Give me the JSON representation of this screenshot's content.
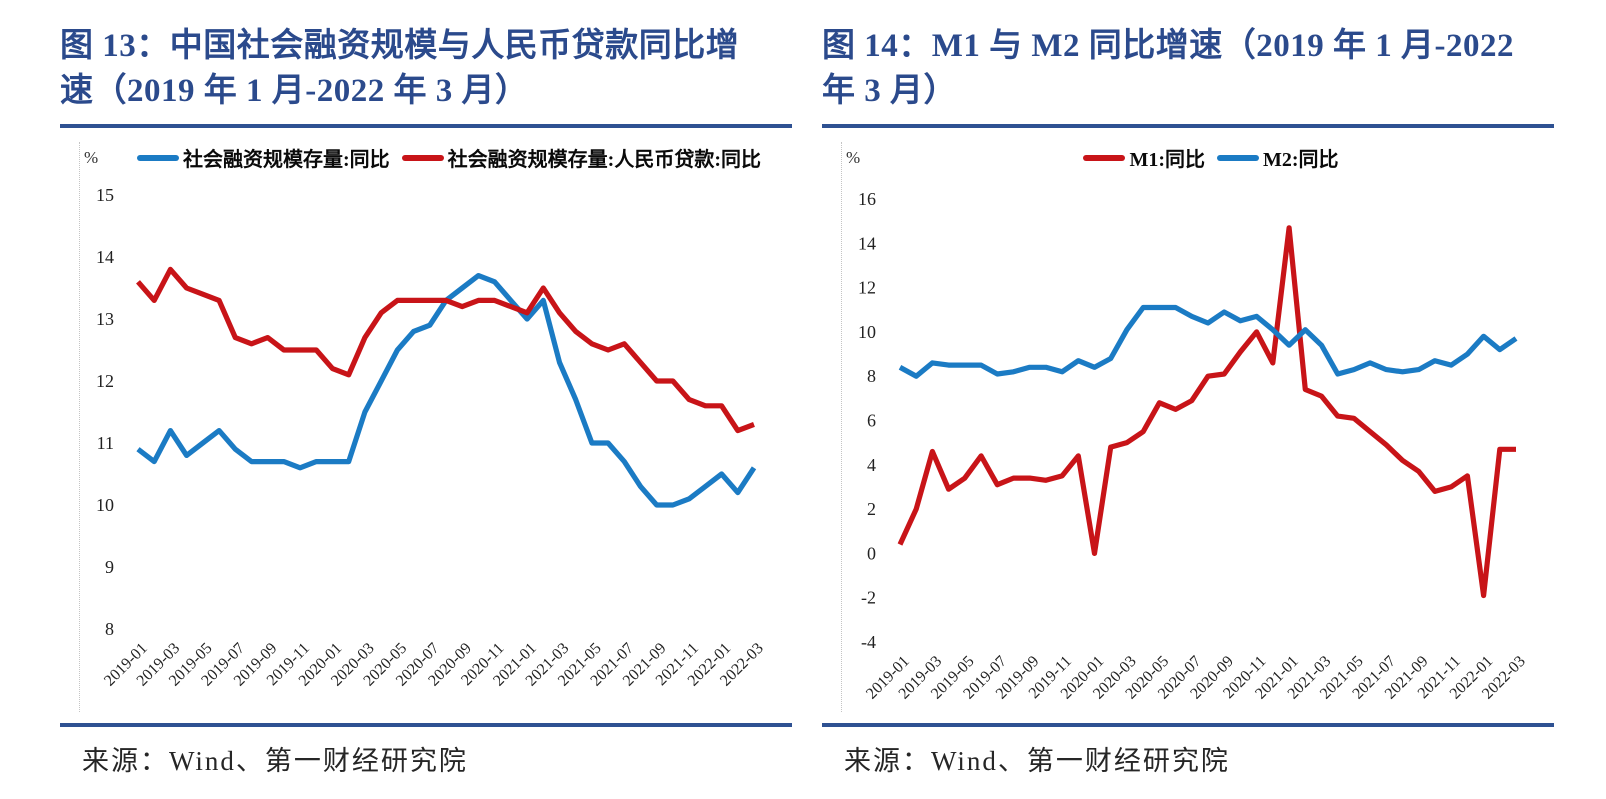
{
  "panels": [
    {
      "figure_label": "图 13",
      "title": "图 13：中国社会融资规模与人民币贷款同比增速（2019 年 1 月-2022 年 3 月）",
      "unit_label": "%",
      "source": "来源：Wind、第一财经研究院"
    },
    {
      "figure_label": "图 14",
      "title": "图 14：M1 与 M2 同比增速（2019 年 1 月-2022 年 3 月）",
      "unit_label": "%",
      "source": "来源：Wind、第一财经研究院"
    }
  ],
  "colors": {
    "title_text": "#2B4A8C",
    "navy_rule": "#2E5192",
    "line_blue": "#1B7BC4",
    "line_red": "#C81418"
  },
  "chart_data": [
    {
      "type": "line",
      "title": "中国社会融资规模与人民币贷款同比增速",
      "ylabel": "%",
      "ylim": [
        8,
        15
      ],
      "yticks": [
        15,
        14,
        13,
        12,
        11,
        10,
        9,
        8
      ],
      "grid": false,
      "legend_position": "top",
      "xtick_step": 2,
      "x": [
        "2019-01",
        "2019-02",
        "2019-03",
        "2019-04",
        "2019-05",
        "2019-06",
        "2019-07",
        "2019-08",
        "2019-09",
        "2019-10",
        "2019-11",
        "2019-12",
        "2020-01",
        "2020-02",
        "2020-03",
        "2020-04",
        "2020-05",
        "2020-06",
        "2020-07",
        "2020-08",
        "2020-09",
        "2020-10",
        "2020-11",
        "2020-12",
        "2021-01",
        "2021-02",
        "2021-03",
        "2021-04",
        "2021-05",
        "2021-06",
        "2021-07",
        "2021-08",
        "2021-09",
        "2021-10",
        "2021-11",
        "2021-12",
        "2022-01",
        "2022-02",
        "2022-03"
      ],
      "series": [
        {
          "name": "社会融资规模存量:同比",
          "color": "#1B7BC4",
          "values": [
            10.9,
            10.7,
            11.2,
            10.8,
            11.0,
            11.2,
            10.9,
            10.7,
            10.7,
            10.7,
            10.6,
            10.7,
            10.7,
            10.7,
            11.5,
            12.0,
            12.5,
            12.8,
            12.9,
            13.3,
            13.5,
            13.7,
            13.6,
            13.3,
            13.0,
            13.3,
            12.3,
            11.7,
            11.0,
            11.0,
            10.7,
            10.3,
            10.0,
            10.0,
            10.1,
            10.3,
            10.5,
            10.2,
            10.6
          ]
        },
        {
          "name": "社会融资规模存量:人民币贷款:同比",
          "color": "#C81418",
          "values": [
            13.6,
            13.3,
            13.8,
            13.5,
            13.4,
            13.3,
            12.7,
            12.6,
            12.7,
            12.5,
            12.5,
            12.5,
            12.2,
            12.1,
            12.7,
            13.1,
            13.3,
            13.3,
            13.3,
            13.3,
            13.2,
            13.3,
            13.3,
            13.2,
            13.1,
            13.5,
            13.1,
            12.8,
            12.6,
            12.5,
            12.6,
            12.3,
            12.0,
            12.0,
            11.7,
            11.6,
            11.6,
            11.2,
            11.3
          ]
        }
      ]
    },
    {
      "type": "line",
      "title": "M1 与 M2 同比增速",
      "ylabel": "%",
      "ylim": [
        -4,
        16
      ],
      "yticks": [
        16,
        14,
        12,
        10,
        8,
        6,
        4,
        2,
        0,
        -2,
        -4
      ],
      "grid": false,
      "legend_position": "top",
      "xtick_step": 2,
      "x": [
        "2019-01",
        "2019-02",
        "2019-03",
        "2019-04",
        "2019-05",
        "2019-06",
        "2019-07",
        "2019-08",
        "2019-09",
        "2019-10",
        "2019-11",
        "2019-12",
        "2020-01",
        "2020-02",
        "2020-03",
        "2020-04",
        "2020-05",
        "2020-06",
        "2020-07",
        "2020-08",
        "2020-09",
        "2020-10",
        "2020-11",
        "2020-12",
        "2021-01",
        "2021-02",
        "2021-03",
        "2021-04",
        "2021-05",
        "2021-06",
        "2021-07",
        "2021-08",
        "2021-09",
        "2021-10",
        "2021-11",
        "2021-12",
        "2022-01",
        "2022-02",
        "2022-03"
      ],
      "series": [
        {
          "name": "M1:同比",
          "color": "#C81418",
          "values": [
            0.4,
            2.0,
            4.6,
            2.9,
            3.4,
            4.4,
            3.1,
            3.4,
            3.4,
            3.3,
            3.5,
            4.4,
            0.0,
            4.8,
            5.0,
            5.5,
            6.8,
            6.5,
            6.9,
            8.0,
            8.1,
            9.1,
            10.0,
            8.6,
            14.7,
            7.4,
            7.1,
            6.2,
            6.1,
            5.5,
            4.9,
            4.2,
            3.7,
            2.8,
            3.0,
            3.5,
            -1.9,
            4.7,
            4.7
          ]
        },
        {
          "name": "M2:同比",
          "color": "#1B7BC4",
          "values": [
            8.4,
            8.0,
            8.6,
            8.5,
            8.5,
            8.5,
            8.1,
            8.2,
            8.4,
            8.4,
            8.2,
            8.7,
            8.4,
            8.8,
            10.1,
            11.1,
            11.1,
            11.1,
            10.7,
            10.4,
            10.9,
            10.5,
            10.7,
            10.1,
            9.4,
            10.1,
            9.4,
            8.1,
            8.3,
            8.6,
            8.3,
            8.2,
            8.3,
            8.7,
            8.5,
            9.0,
            9.8,
            9.2,
            9.7
          ]
        }
      ]
    }
  ]
}
